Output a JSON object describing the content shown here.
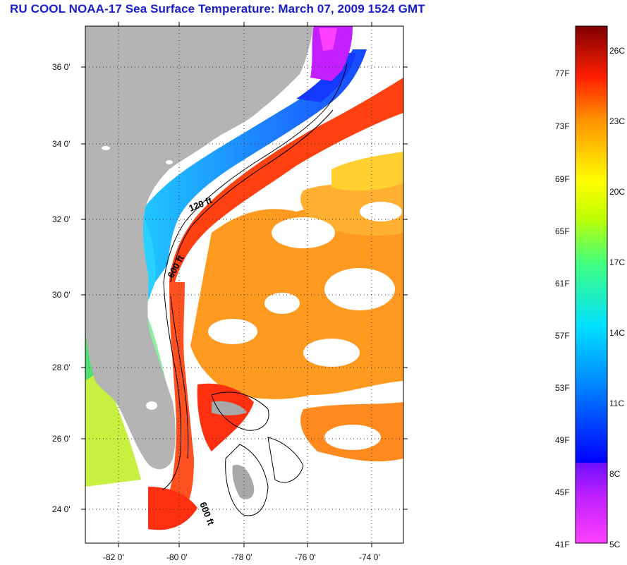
{
  "title": "RU COOL  NOAA-17  Sea Surface Temperature:  March 07, 2009 1524 GMT",
  "map": {
    "lat_labels": [
      "36 0'",
      "34 0'",
      "32 0'",
      "30 0'",
      "28 0'",
      "26 0'",
      "24 0'"
    ],
    "lon_labels": [
      "-82 0'",
      "-80 0'",
      "-78 0'",
      "-76 0'",
      "-74 0'"
    ],
    "contour_labels": [
      "120 ft",
      "600 ft",
      "600 ft"
    ],
    "colors": {
      "land": "#b4b4b4",
      "clouds": "#ffffff",
      "gulf_stream": "#ff4a10",
      "offshore": "#ff9a20",
      "shelf_cold": "#1e4cff",
      "shelf_mid": "#18bfff",
      "chesapeake": "#c420ff"
    }
  },
  "colorbar": {
    "fahrenheit_labels": [
      "77F",
      "73F",
      "69F",
      "65F",
      "61F",
      "57F",
      "53F",
      "49F",
      "45F",
      "41F"
    ],
    "celsius_labels": [
      "26C",
      "23C",
      "20C",
      "17C",
      "14C",
      "11C",
      "8C",
      "5C"
    ],
    "range_f": [
      41,
      81
    ],
    "range_c": [
      5,
      27
    ]
  }
}
